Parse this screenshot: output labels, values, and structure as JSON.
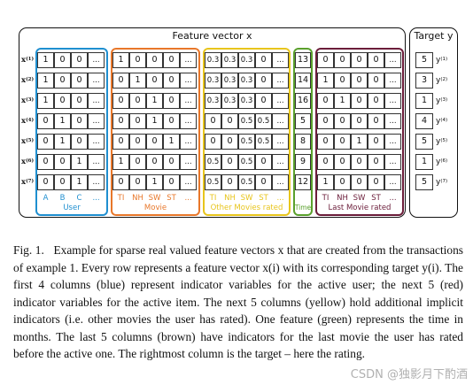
{
  "figure": {
    "main_title": "Feature vector x",
    "target_title": "Target y",
    "row_labels": [
      "x(1)",
      "x(2)",
      "x(3)",
      "x(4)",
      "x(5)",
      "x(6)",
      "x(7)"
    ],
    "groups": [
      {
        "key": "user",
        "name": "User",
        "color": "#1f8fd0",
        "headers": [
          "A",
          "B",
          "C",
          "..."
        ],
        "rows": [
          [
            "1",
            "0",
            "0",
            "..."
          ],
          [
            "1",
            "0",
            "0",
            "..."
          ],
          [
            "1",
            "0",
            "0",
            "..."
          ],
          [
            "0",
            "1",
            "0",
            "..."
          ],
          [
            "0",
            "1",
            "0",
            "..."
          ],
          [
            "0",
            "0",
            "1",
            "..."
          ],
          [
            "0",
            "0",
            "1",
            "..."
          ]
        ]
      },
      {
        "key": "movie",
        "name": "Movie",
        "color": "#e8772a",
        "headers": [
          "TI",
          "NH",
          "SW",
          "ST",
          "..."
        ],
        "rows": [
          [
            "1",
            "0",
            "0",
            "0",
            "..."
          ],
          [
            "0",
            "1",
            "0",
            "0",
            "..."
          ],
          [
            "0",
            "0",
            "1",
            "0",
            "..."
          ],
          [
            "0",
            "0",
            "1",
            "0",
            "..."
          ],
          [
            "0",
            "0",
            "0",
            "1",
            "..."
          ],
          [
            "1",
            "0",
            "0",
            "0",
            "..."
          ],
          [
            "0",
            "0",
            "1",
            "0",
            "..."
          ]
        ]
      },
      {
        "key": "other",
        "name": "Other Movies rated",
        "color": "#e8c51c",
        "headers": [
          "TI",
          "NH",
          "SW",
          "ST",
          "..."
        ],
        "rows": [
          [
            "0.3",
            "0.3",
            "0.3",
            "0",
            "..."
          ],
          [
            "0.3",
            "0.3",
            "0.3",
            "0",
            "..."
          ],
          [
            "0.3",
            "0.3",
            "0.3",
            "0",
            "..."
          ],
          [
            "0",
            "0",
            "0.5",
            "0.5",
            "..."
          ],
          [
            "0",
            "0",
            "0.5",
            "0.5",
            "..."
          ],
          [
            "0.5",
            "0",
            "0.5",
            "0",
            "..."
          ],
          [
            "0.5",
            "0",
            "0.5",
            "0",
            "..."
          ]
        ]
      },
      {
        "key": "time",
        "name": "Time",
        "color": "#5aa02c",
        "headers": [],
        "rows": [
          [
            "13"
          ],
          [
            "14"
          ],
          [
            "16"
          ],
          [
            "5"
          ],
          [
            "8"
          ],
          [
            "9"
          ],
          [
            "12"
          ]
        ]
      },
      {
        "key": "last",
        "name": "Last Movie rated",
        "color": "#6b1d3a",
        "headers": [
          "TI",
          "NH",
          "SW",
          "ST",
          "..."
        ],
        "rows": [
          [
            "0",
            "0",
            "0",
            "0",
            "..."
          ],
          [
            "1",
            "0",
            "0",
            "0",
            "..."
          ],
          [
            "0",
            "1",
            "0",
            "0",
            "..."
          ],
          [
            "0",
            "0",
            "0",
            "0",
            "..."
          ],
          [
            "0",
            "0",
            "1",
            "0",
            "..."
          ],
          [
            "0",
            "0",
            "0",
            "0",
            "..."
          ],
          [
            "1",
            "0",
            "0",
            "0",
            "..."
          ]
        ]
      }
    ],
    "targets": [
      {
        "value": "5",
        "label": "y(1)"
      },
      {
        "value": "3",
        "label": "y(2)"
      },
      {
        "value": "1",
        "label": "y(3)"
      },
      {
        "value": "4",
        "label": "y(4)"
      },
      {
        "value": "5",
        "label": "y(5)"
      },
      {
        "value": "1",
        "label": "y(6)"
      },
      {
        "value": "5",
        "label": "y(7)"
      }
    ]
  },
  "caption": {
    "label": "Fig. 1.",
    "text": "Example for sparse real valued feature vectors x that are created from the transactions of example 1. Every row represents a feature vector x(i) with its corresponding target y(i). The first 4 columns (blue) represent indicator variables for the active user; the next 5 (red) indicator variables for the active item. The next 5 columns (yellow) hold additional implicit indicators (i.e. other movies the user has rated). One feature (green) represents the time in months. The last 5 columns (brown) have indicators for the last movie the user has rated before the active one. The rightmost column is the target – here the rating."
  },
  "watermark": "CSDN @独影月下酌酒"
}
